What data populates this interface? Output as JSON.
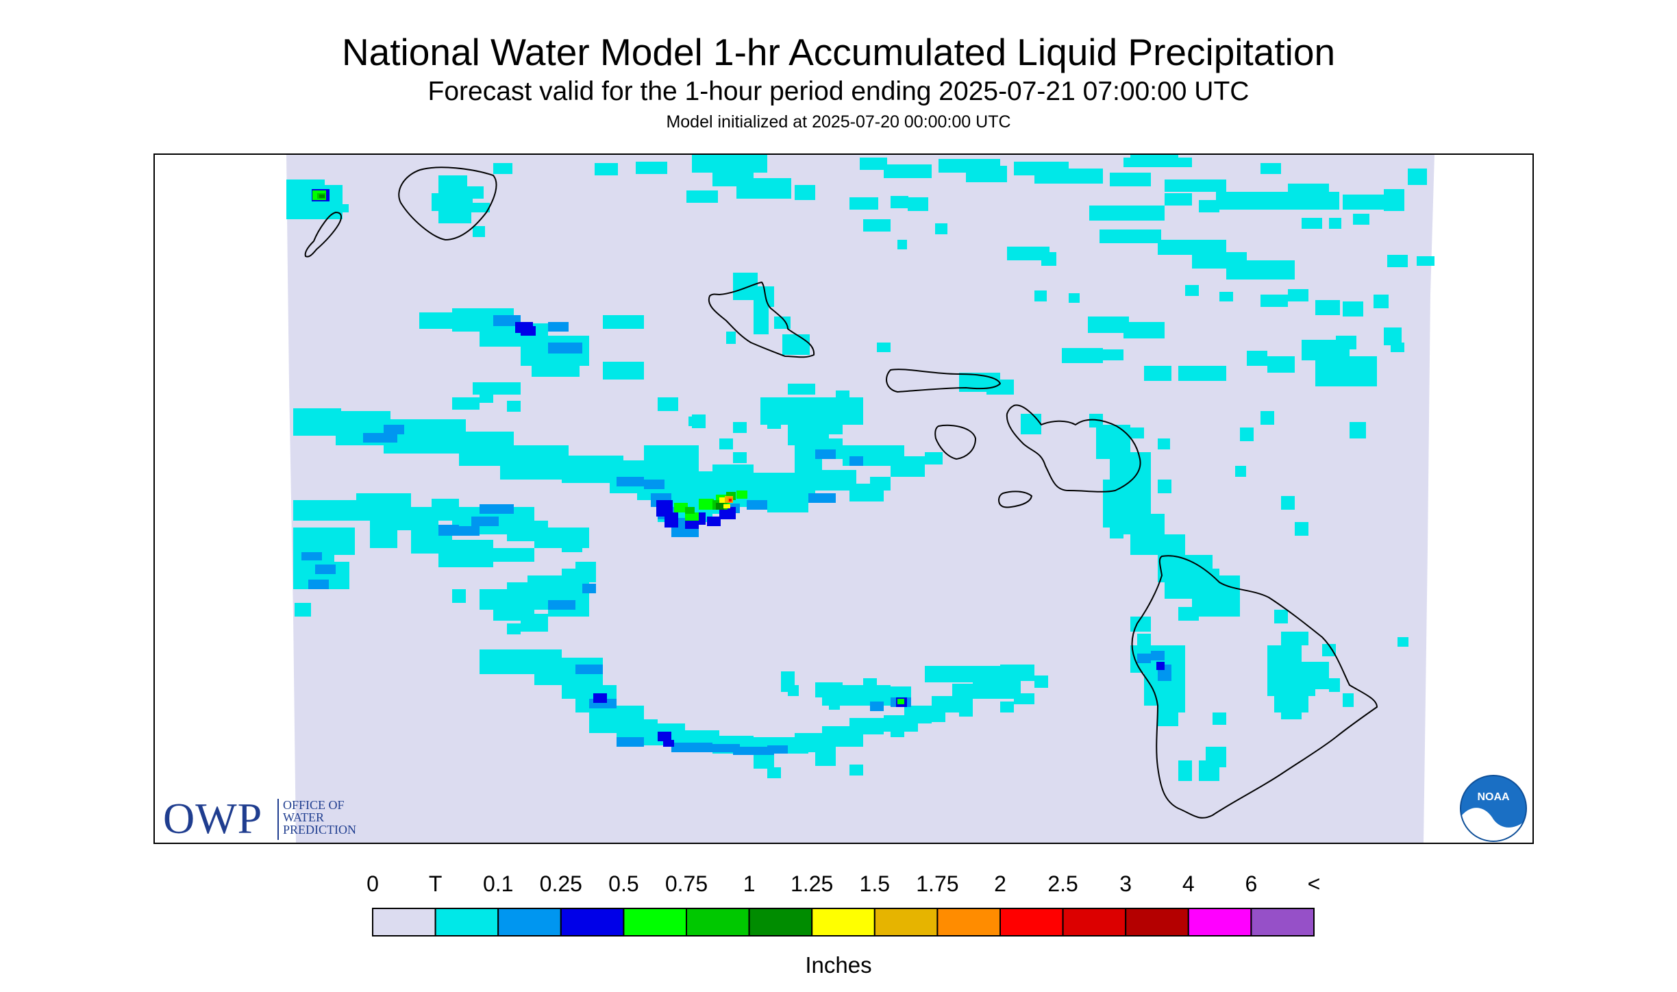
{
  "title": "National Water Model 1-hr Accumulated Liquid Precipitation",
  "subtitle": "Forecast valid for the 1-hour period ending 2025-07-21 07:00:00 UTC",
  "init_text": "Model initialized at 2025-07-20 00:00:00 UTC",
  "legend": {
    "labels": [
      "0",
      "T",
      "0.1",
      "0.25",
      "0.5",
      "0.75",
      "1",
      "1.25",
      "1.5",
      "1.75",
      "2",
      "2.5",
      "3",
      "4",
      "6",
      "<"
    ],
    "colors": [
      "#dcdcf0",
      "#00e8e8",
      "#0096f0",
      "#0000e8",
      "#00ff00",
      "#00c800",
      "#008c00",
      "#ffff00",
      "#e6b400",
      "#ff8c00",
      "#ff0000",
      "#dc0000",
      "#b40000",
      "#ff00ff",
      "#9650c8"
    ],
    "units": "Inches"
  },
  "colors": {
    "no_data": "#ffffff",
    "land_outline": "#000000",
    "owp_blue": "#1f3d8f",
    "noaa_blue": "#1a6fc4"
  },
  "owp_logo": {
    "big": "OWP",
    "lines": [
      "OFFICE OF",
      "WATER",
      "PREDICTION"
    ]
  },
  "noaa_logo": {
    "text": "NOAA"
  },
  "icons": [
    "owp-logo",
    "noaa-logo"
  ]
}
